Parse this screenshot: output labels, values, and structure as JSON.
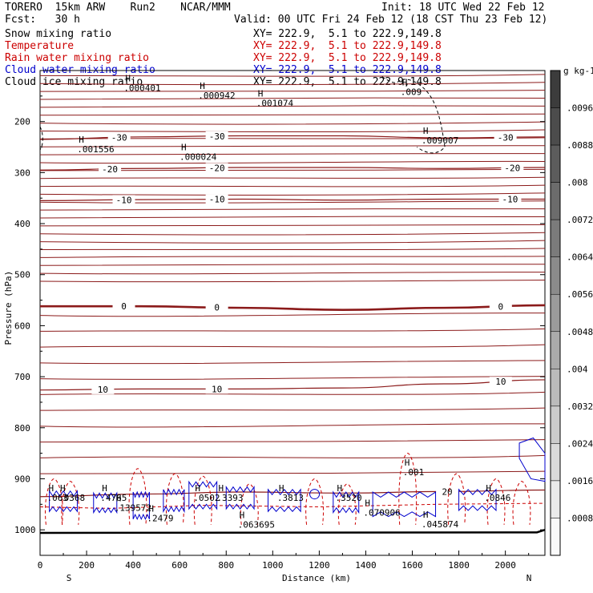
{
  "header": {
    "model": "TORERO  15km ARW    Run2    NCAR/MMM",
    "init": "Init: 18 UTC Wed 22 Feb 12",
    "fcst": "Fcst:   30 h",
    "valid": "Valid: 00 UTC Fri 24 Feb 12 (18 CST Thu 23 Feb 12)"
  },
  "legend": [
    {
      "field": "Snow mixing ratio",
      "xy": "",
      "color": "#000000"
    },
    {
      "field": "Temperature",
      "xy": "XY= 222.9,  5.1 to 222.9,149.8",
      "color": "#cc0000"
    },
    {
      "field": "Rain water mixing ratio",
      "xy": "XY= 222.9,  5.1 to 222.9,149.8",
      "color": "#cc0000"
    },
    {
      "field": "Cloud water mixing ratio",
      "xy": "XY= 222.9,  5.1 to 222.9,149.8",
      "color": "#0000cc"
    },
    {
      "field": "Cloud ice mixing ratio",
      "xy": "XY= 222.9,  5.1 to 222.9,149.8",
      "color": "#000000"
    }
  ],
  "snow_xy": "XY= 222.9,  5.1 to 222.9,149.8",
  "chart_data": {
    "type": "cross-section contour",
    "xlabel": "Distance (km)",
    "ylabel": "Pressure (hPa)",
    "xlim": [
      0,
      2170
    ],
    "ylim": [
      1050,
      100
    ],
    "x_ticks": [
      0,
      200,
      400,
      600,
      800,
      1000,
      1200,
      1400,
      1600,
      1800,
      2000
    ],
    "y_ticks": [
      200,
      300,
      400,
      500,
      600,
      700,
      800,
      900,
      1000
    ],
    "x_end_labels": {
      "left": "S",
      "right": "N"
    },
    "temperature_contours": [
      {
        "label": "-30",
        "p": [
          235,
          230,
          228,
          228,
          232,
          230
        ]
      },
      {
        "label": "-20",
        "p": [
          295,
          292,
          290,
          290,
          292,
          290
        ]
      },
      {
        "label": "-10",
        "p": [
          355,
          353,
          352,
          354,
          352,
          352
        ]
      },
      {
        "label": "0",
        "p": [
          562,
          562,
          565,
          569,
          565,
          560
        ]
      },
      {
        "label": "10",
        "p": [
          726,
          724,
          724,
          722,
          714,
          706
        ]
      },
      {
        "label": "20",
        "p": [
          935,
          930,
          926,
          928,
          925,
          922
        ]
      }
    ],
    "temperature_label_positions_km": {
      "-30": [
        340,
        760,
        2000
      ],
      "-20": [
        300,
        760,
        2030
      ],
      "-10": [
        360,
        760,
        2020
      ],
      "0": [
        360,
        760,
        1980
      ],
      "10": [
        270,
        760,
        1980
      ],
      "20": [
        1750
      ]
    },
    "contour_x_km": [
      0,
      434,
      868,
      1302,
      1736,
      2170
    ],
    "maxima": [
      {
        "field": "snow",
        "label": ".000401",
        "x_km": 380,
        "p": 140
      },
      {
        "field": "snow",
        "label": ".000942",
        "x_km": 700,
        "p": 155
      },
      {
        "field": "snow",
        "label": ".001074",
        "x_km": 950,
        "p": 170
      },
      {
        "field": "snow",
        "label": ".001556",
        "x_km": 180,
        "p": 260
      },
      {
        "field": "snow",
        "label": ".000024",
        "x_km": 620,
        "p": 275
      },
      {
        "field": "snow",
        "label": ".009007",
        "x_km": 1660,
        "p": 243
      },
      {
        "field": "snow",
        "label": ".009",
        "x_km": 1570,
        "p": 148
      },
      {
        "field": "rain",
        "label": ".001",
        "x_km": 1580,
        "p": 893
      },
      {
        "field": "rain",
        "label": ".139572",
        "x_km": 340,
        "p": 963
      },
      {
        "field": "rain",
        "label": ".063695",
        "x_km": 870,
        "p": 996
      },
      {
        "field": "rain",
        "label": ".070906",
        "x_km": 1410,
        "p": 972
      },
      {
        "field": "rain",
        "label": ".045874",
        "x_km": 1660,
        "p": 995
      },
      {
        "field": "rain",
        "label": ".063",
        "x_km": 50,
        "p": 943
      },
      {
        "field": "cloud",
        "label": ".0368",
        "x_km": 100,
        "p": 943
      },
      {
        "field": "cloud",
        "label": ".4765",
        "x_km": 280,
        "p": 943
      },
      {
        "field": "cloud",
        "label": ".2479",
        "x_km": 480,
        "p": 983
      },
      {
        "field": "cloud",
        "label": ".0502",
        "x_km": 680,
        "p": 943
      },
      {
        "field": "cloud",
        "label": ".3393",
        "x_km": 780,
        "p": 943
      },
      {
        "field": "cloud",
        "label": ".3813",
        "x_km": 1040,
        "p": 943
      },
      {
        "field": "cloud",
        "label": ".3520",
        "x_km": 1290,
        "p": 943
      },
      {
        "field": "cloud",
        "label": ".0846",
        "x_km": 1930,
        "p": 943
      }
    ],
    "colorbar": {
      "units": "g kg-1",
      "ticks": [
        ".0096",
        ".0088",
        ".008",
        ".0072",
        ".0064",
        ".0056",
        ".0048",
        ".004",
        ".0032",
        ".0024",
        ".0016",
        ".0008"
      ]
    }
  }
}
